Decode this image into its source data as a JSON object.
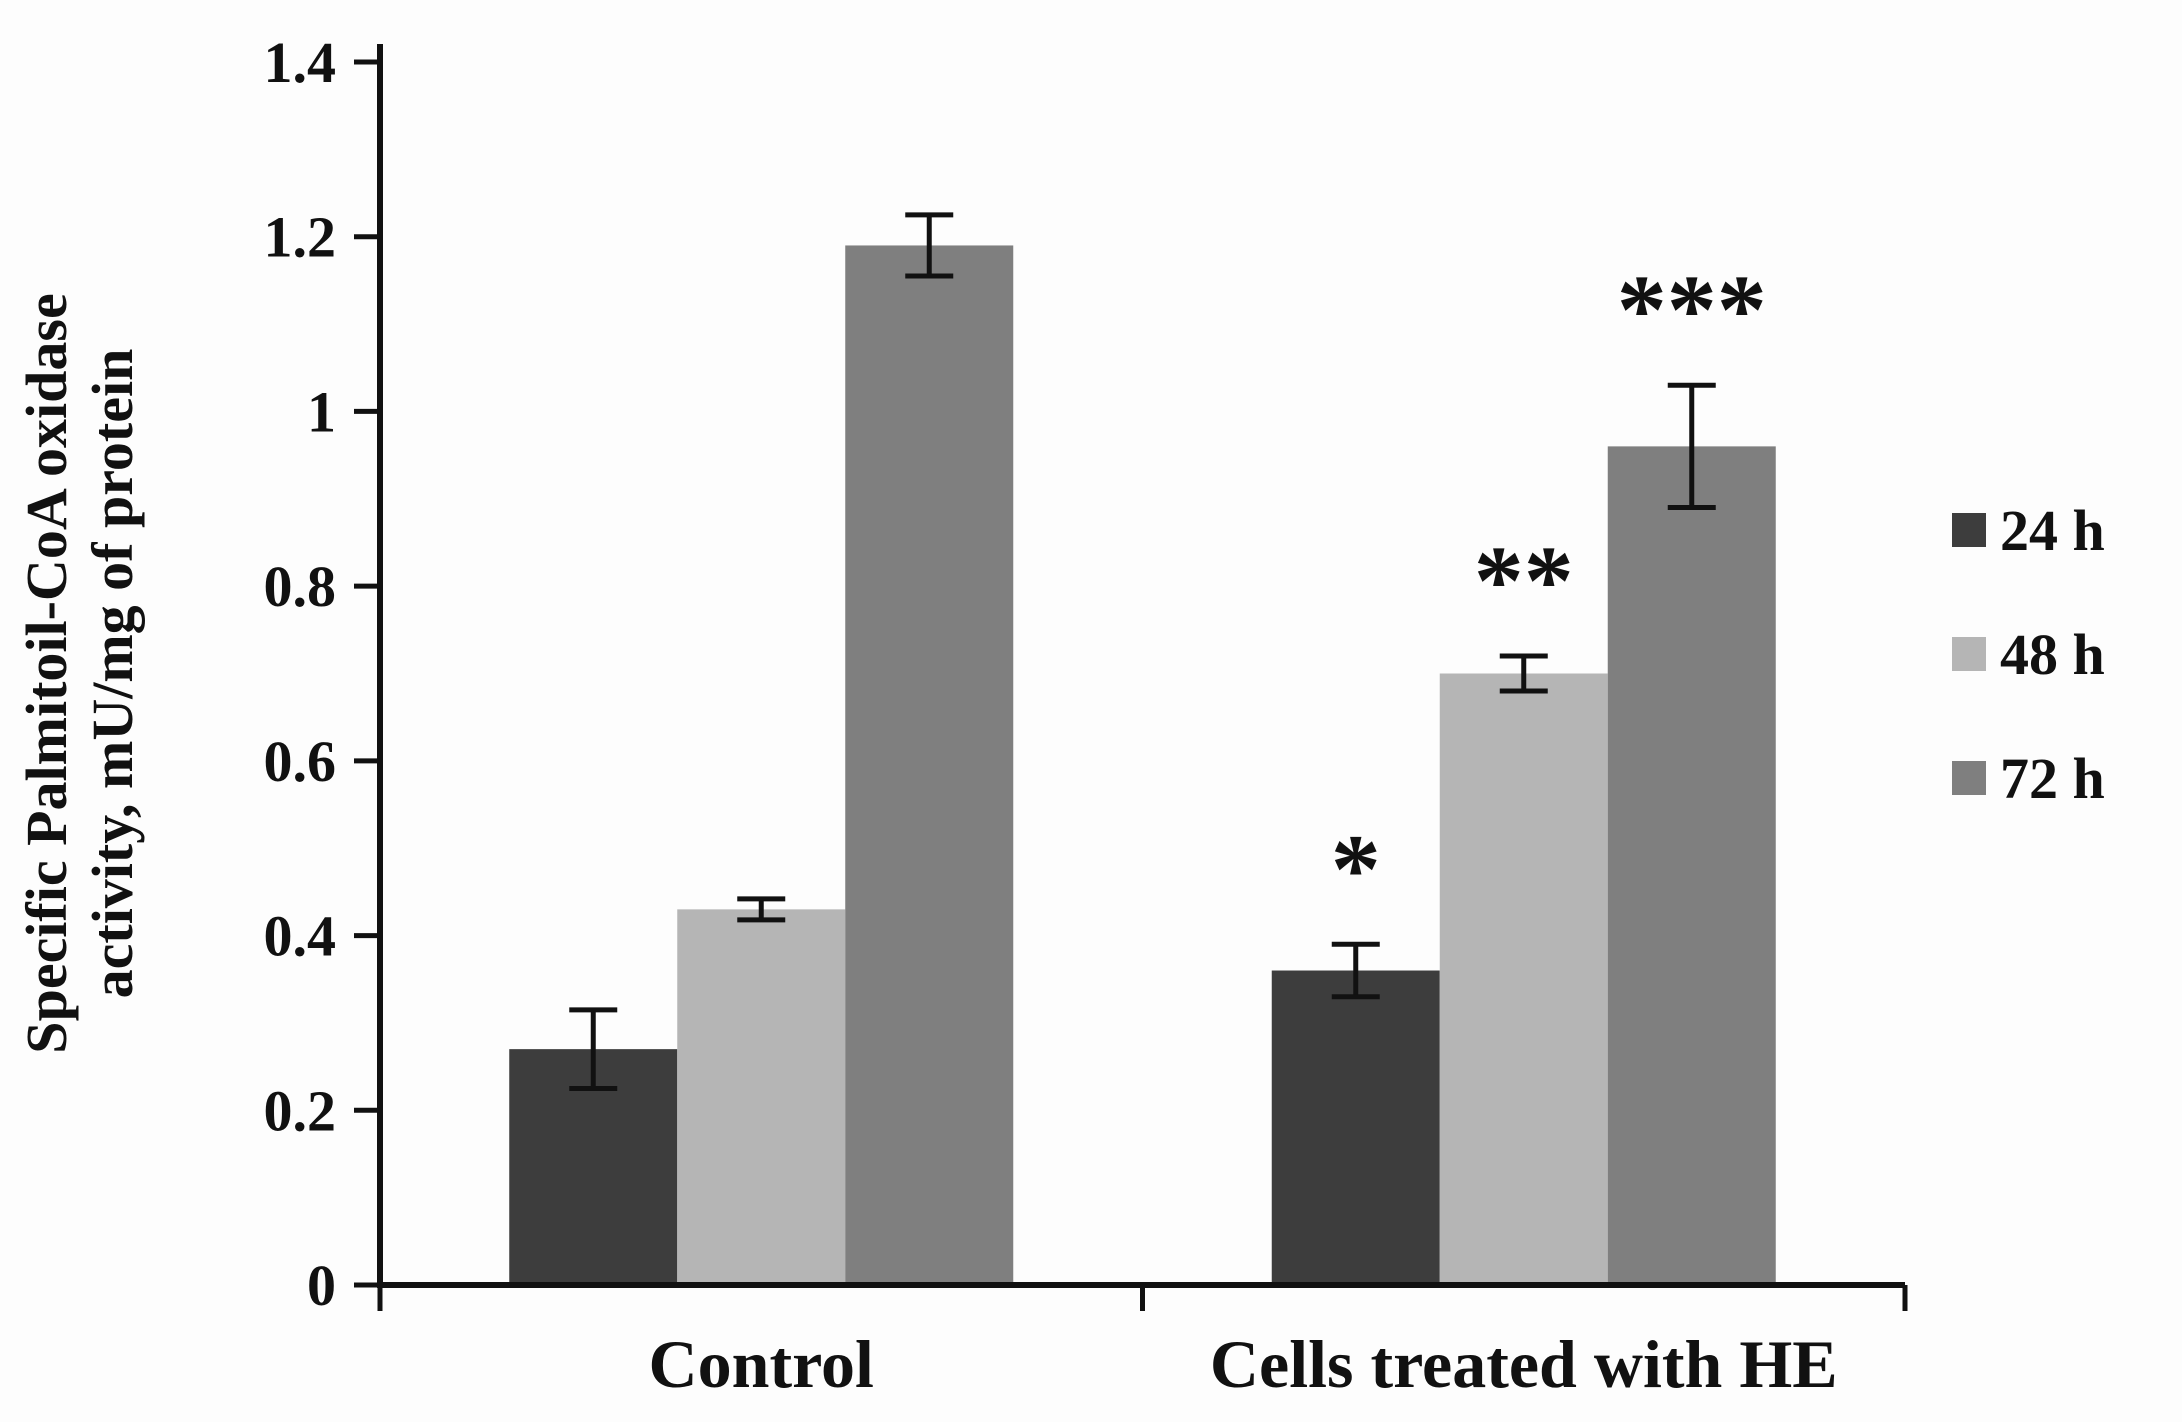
{
  "chart_data": {
    "type": "bar",
    "title": "",
    "ylabel_lines": [
      "Specific Palmitoil-CoA oxidase",
      "activity, mU/mg of protein"
    ],
    "xlabel": "",
    "categories": [
      "Control",
      "Cells treated with HE"
    ],
    "series": [
      {
        "name": "24 h",
        "color": "#3d3d3d",
        "values": [
          0.27,
          0.36
        ],
        "errors": [
          0.045,
          0.03
        ]
      },
      {
        "name": "48 h",
        "color": "#b5b5b5",
        "values": [
          0.43,
          0.7
        ],
        "errors": [
          0.012,
          0.02
        ]
      },
      {
        "name": "72 h",
        "color": "#7f7f7f",
        "values": [
          1.19,
          0.96
        ],
        "errors": [
          0.035,
          0.07
        ]
      }
    ],
    "annotations": [
      {
        "category_index": 1,
        "series_index": 0,
        "text": "*"
      },
      {
        "category_index": 1,
        "series_index": 1,
        "text": "**"
      },
      {
        "category_index": 1,
        "series_index": 2,
        "text": "***"
      }
    ],
    "ylim": [
      0,
      1.4
    ],
    "yticks": [
      0,
      0.2,
      0.4,
      0.6,
      0.8,
      1,
      1.2,
      1.4
    ],
    "ytick_labels": [
      "0",
      "0.2",
      "0.4",
      "0.6",
      "0.8",
      "1",
      "1.2",
      "1.4"
    ],
    "grid": false,
    "error_bars": true,
    "legend_position": "right",
    "legend_labels": [
      "24 h",
      "48 h",
      "72 h"
    ],
    "axis_color": "#111111",
    "background_color": "#fdfdfd"
  }
}
